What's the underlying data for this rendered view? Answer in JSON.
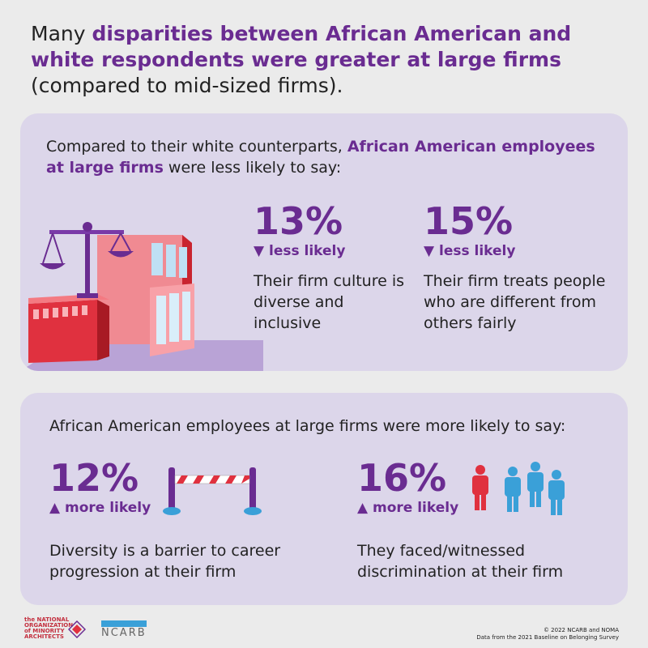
{
  "headline": {
    "pre": "Many ",
    "highlight": "disparities between African American and white respondents were greater at large firms",
    "post": " (compared to mid-sized firms)."
  },
  "less_section": {
    "intro_pre": "Compared to their white counterparts, ",
    "intro_highlight": "African American employees at large firms",
    "intro_post": " were less likely to say:",
    "stats": [
      {
        "value": "13%",
        "arrow": "▼",
        "label": "less likely",
        "description": "Their firm culture is diverse and inclusive"
      },
      {
        "value": "15%",
        "arrow": "▼",
        "label": "less likely",
        "description": "Their firm treats people who are different from others fairly"
      }
    ]
  },
  "more_section": {
    "intro": "African American employees at large firms were more likely to say:",
    "stats": [
      {
        "value": "12%",
        "arrow": "▲",
        "label": "more likely",
        "description": "Diversity is a barrier to career progression at their firm"
      },
      {
        "value": "16%",
        "arrow": "▲",
        "label": "more likely",
        "description": "They faced/witnessed discrimination at their firm"
      }
    ]
  },
  "footer": {
    "noma_line1": "the NATIONAL",
    "noma_line2": "ORGANIZATION",
    "noma_line3": "of MINORITY",
    "noma_line4": "ARCHITECTS",
    "ncarb": "NCARB",
    "copyright": "© 2022 NCARB and NOMA",
    "source": "Data from the 2021 Baseline on Belonging Survey"
  },
  "colors": {
    "accent": "#6a2c91",
    "card": "#dcd6ea",
    "background": "#ebebeb",
    "red": "#e0313f",
    "blue": "#3aa0d8"
  }
}
